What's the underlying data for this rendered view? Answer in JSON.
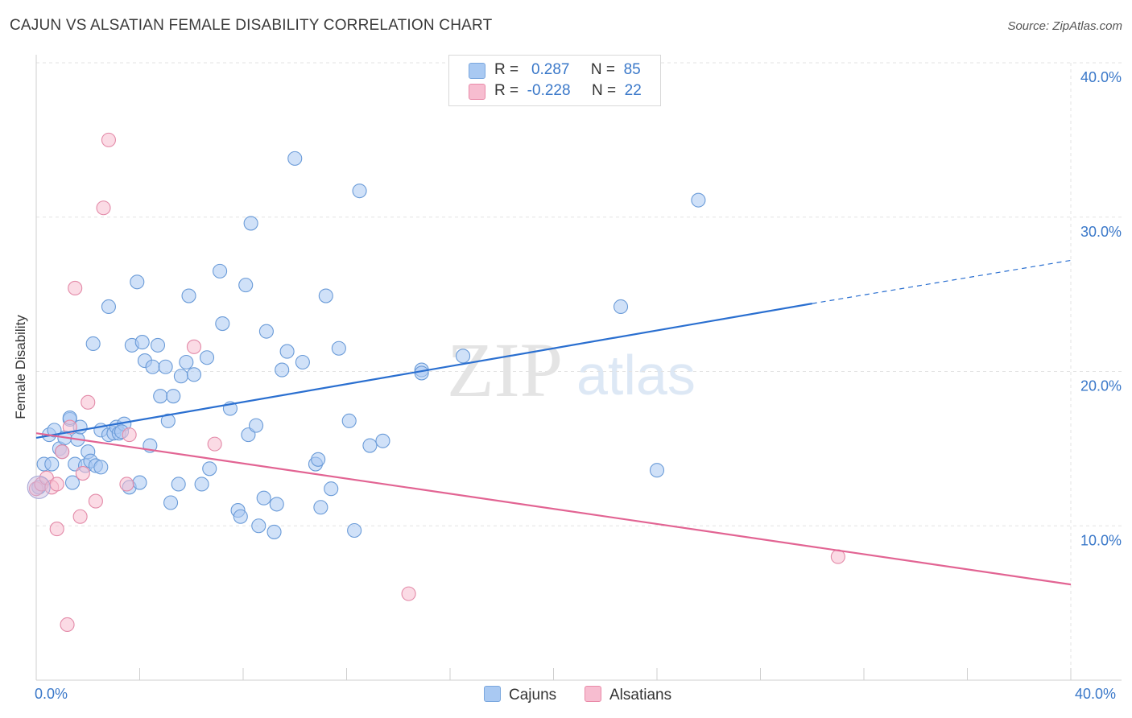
{
  "title": "CAJUN VS ALSATIAN FEMALE DISABILITY CORRELATION CHART",
  "source": "Source: ZipAtlas.com",
  "watermark": {
    "zip": "ZIP",
    "atlas": "atlas"
  },
  "legend": {
    "rows": [
      {
        "r_label": "R =",
        "r_value": "0.287",
        "n_label": "N =",
        "n_value": "85",
        "color": "#a9c9f2",
        "border": "#7aa7de"
      },
      {
        "r_label": "R =",
        "r_value": "-0.228",
        "n_label": "N =",
        "n_value": "22",
        "color": "#f7bdd0",
        "border": "#e98aa8"
      }
    ]
  },
  "bottom_legend": [
    {
      "label": "Cajuns",
      "color": "#a9c9f2",
      "border": "#7aa7de"
    },
    {
      "label": "Alsatians",
      "color": "#f7bdd0",
      "border": "#e98aa8"
    }
  ],
  "chart_data": {
    "type": "scatter",
    "title": "CAJUN VS ALSATIAN FEMALE DISABILITY CORRELATION CHART",
    "ylabel": "Female Disability",
    "xlabel": "",
    "xlim": [
      0,
      40
    ],
    "ylim": [
      0,
      40
    ],
    "x_tick_labels": [
      "0.0%",
      "40.0%"
    ],
    "y_tick_labels": [
      "10.0%",
      "20.0%",
      "30.0%",
      "40.0%"
    ],
    "y_ticks": [
      10,
      20,
      30,
      40
    ],
    "grid": true,
    "legend_position": "top-center",
    "series": [
      {
        "name": "Cajuns",
        "color": "#a9c9f2",
        "stroke": "#6a9bd8",
        "trend_color": "#2a6fd0",
        "trend": {
          "x0": 0,
          "y0": 15.7,
          "x1": 30.0,
          "y1": 24.4,
          "dashed_to_x": 40,
          "dashed_to_y": 27.2
        },
        "points": [
          [
            0.1,
            12.5
          ],
          [
            0.3,
            14.0
          ],
          [
            0.5,
            15.9
          ],
          [
            0.6,
            14.0
          ],
          [
            0.7,
            16.2
          ],
          [
            0.9,
            15.0
          ],
          [
            1.0,
            14.8
          ],
          [
            1.1,
            15.7
          ],
          [
            1.3,
            16.9
          ],
          [
            1.4,
            12.8
          ],
          [
            1.5,
            14.0
          ],
          [
            1.6,
            15.6
          ],
          [
            1.7,
            16.4
          ],
          [
            1.9,
            13.9
          ],
          [
            2.0,
            14.8
          ],
          [
            2.1,
            14.2
          ],
          [
            2.3,
            13.9
          ],
          [
            2.2,
            21.8
          ],
          [
            2.5,
            13.8
          ],
          [
            2.5,
            16.2
          ],
          [
            2.8,
            24.2
          ],
          [
            2.8,
            15.9
          ],
          [
            3.0,
            16.0
          ],
          [
            3.1,
            16.4
          ],
          [
            3.2,
            16.0
          ],
          [
            3.4,
            16.6
          ],
          [
            3.6,
            12.5
          ],
          [
            3.7,
            21.7
          ],
          [
            3.9,
            25.8
          ],
          [
            4.0,
            12.8
          ],
          [
            4.1,
            21.9
          ],
          [
            4.2,
            20.7
          ],
          [
            4.4,
            15.2
          ],
          [
            4.5,
            20.3
          ],
          [
            4.7,
            21.7
          ],
          [
            4.8,
            18.4
          ],
          [
            5.0,
            20.3
          ],
          [
            5.1,
            16.8
          ],
          [
            5.2,
            11.5
          ],
          [
            5.3,
            18.4
          ],
          [
            5.5,
            12.7
          ],
          [
            5.6,
            19.7
          ],
          [
            5.8,
            20.6
          ],
          [
            5.9,
            24.9
          ],
          [
            6.1,
            19.8
          ],
          [
            6.4,
            12.7
          ],
          [
            6.6,
            20.9
          ],
          [
            6.7,
            13.7
          ],
          [
            7.1,
            26.5
          ],
          [
            7.2,
            23.1
          ],
          [
            7.5,
            17.6
          ],
          [
            7.8,
            11.0
          ],
          [
            7.9,
            10.6
          ],
          [
            8.1,
            25.6
          ],
          [
            8.2,
            15.9
          ],
          [
            8.3,
            29.6
          ],
          [
            8.5,
            16.5
          ],
          [
            8.6,
            10.0
          ],
          [
            8.8,
            11.8
          ],
          [
            8.9,
            22.6
          ],
          [
            9.2,
            9.6
          ],
          [
            9.3,
            11.4
          ],
          [
            9.5,
            20.1
          ],
          [
            9.7,
            21.3
          ],
          [
            10.0,
            33.8
          ],
          [
            10.3,
            20.6
          ],
          [
            10.8,
            14.0
          ],
          [
            10.9,
            14.3
          ],
          [
            11.0,
            11.2
          ],
          [
            11.2,
            24.9
          ],
          [
            11.4,
            12.4
          ],
          [
            11.7,
            21.5
          ],
          [
            12.1,
            16.8
          ],
          [
            12.3,
            9.7
          ],
          [
            12.5,
            31.7
          ],
          [
            12.9,
            15.2
          ],
          [
            13.4,
            15.5
          ],
          [
            14.9,
            20.1
          ],
          [
            14.9,
            19.9
          ],
          [
            16.5,
            21.0
          ],
          [
            22.6,
            24.2
          ],
          [
            24.0,
            13.6
          ],
          [
            25.6,
            31.1
          ],
          [
            1.3,
            17.0
          ],
          [
            3.3,
            16.1
          ]
        ]
      },
      {
        "name": "Alsatians",
        "color": "#f7bdd0",
        "stroke": "#e38aa8",
        "trend_color": "#e26493",
        "trend": {
          "x0": 0,
          "y0": 16.0,
          "x1": 40,
          "y1": 6.2
        },
        "points": [
          [
            0.0,
            12.4
          ],
          [
            0.2,
            12.7
          ],
          [
            0.4,
            13.1
          ],
          [
            0.6,
            12.5
          ],
          [
            0.8,
            9.8
          ],
          [
            0.8,
            12.7
          ],
          [
            1.0,
            14.8
          ],
          [
            1.2,
            3.6
          ],
          [
            1.3,
            16.4
          ],
          [
            1.5,
            25.4
          ],
          [
            1.7,
            10.6
          ],
          [
            1.8,
            13.4
          ],
          [
            2.0,
            18.0
          ],
          [
            2.3,
            11.6
          ],
          [
            2.6,
            30.6
          ],
          [
            2.8,
            35.0
          ],
          [
            3.5,
            12.7
          ],
          [
            3.6,
            15.9
          ],
          [
            6.1,
            21.6
          ],
          [
            6.9,
            15.3
          ],
          [
            14.4,
            5.6
          ],
          [
            31.0,
            8.0
          ]
        ]
      }
    ]
  }
}
